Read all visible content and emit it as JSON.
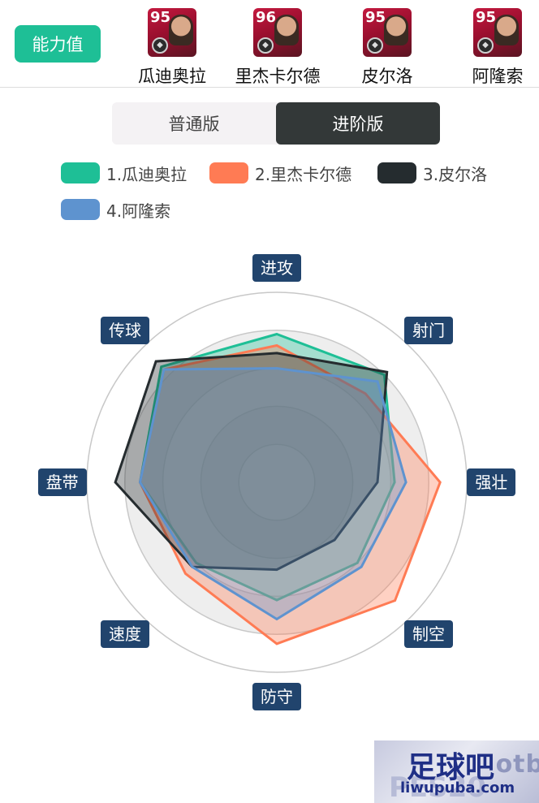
{
  "header": {
    "ability_label": "能力值",
    "players": [
      {
        "rating": "95",
        "name": "瓜迪奥拉"
      },
      {
        "rating": "96",
        "name": "里杰卡尔德"
      },
      {
        "rating": "95",
        "name": "皮尔洛"
      },
      {
        "rating": "95",
        "name": "阿隆索"
      }
    ]
  },
  "toggle": {
    "normal": "普通版",
    "advanced": "进阶版",
    "active": "advanced"
  },
  "legend": [
    {
      "label": "1.瓜迪奥拉",
      "color": "#1ebf96"
    },
    {
      "label": "2.里杰卡尔德",
      "color": "#ff7b54"
    },
    {
      "label": "3.皮尔洛",
      "color": "#252c2f"
    },
    {
      "label": "4.阿隆索",
      "color": "#5e93cf"
    }
  ],
  "chart_data": {
    "type": "radar",
    "axes": [
      "进攻",
      "射门",
      "强壮",
      "制空",
      "防守",
      "速度",
      "盘带",
      "传球"
    ],
    "rmax": 100,
    "series": [
      {
        "name": "1.瓜迪奥拉",
        "color": "#1ebf96",
        "values": [
          78,
          80,
          62,
          60,
          62,
          60,
          72,
          86
        ]
      },
      {
        "name": "2.里杰卡尔德",
        "color": "#ff7b54",
        "values": [
          72,
          66,
          86,
          88,
          85,
          68,
          72,
          84
        ]
      },
      {
        "name": "3.皮尔洛",
        "color": "#252c2f",
        "values": [
          68,
          82,
          53,
          43,
          46,
          63,
          85,
          90
        ]
      },
      {
        "name": "4.阿隆索",
        "color": "#5e93cf",
        "values": [
          60,
          75,
          68,
          63,
          72,
          63,
          72,
          84
        ]
      }
    ]
  },
  "watermark": {
    "main": "足球吧",
    "url": "liwupuba.com",
    "bg": "otb",
    "bg2": "PES20"
  }
}
